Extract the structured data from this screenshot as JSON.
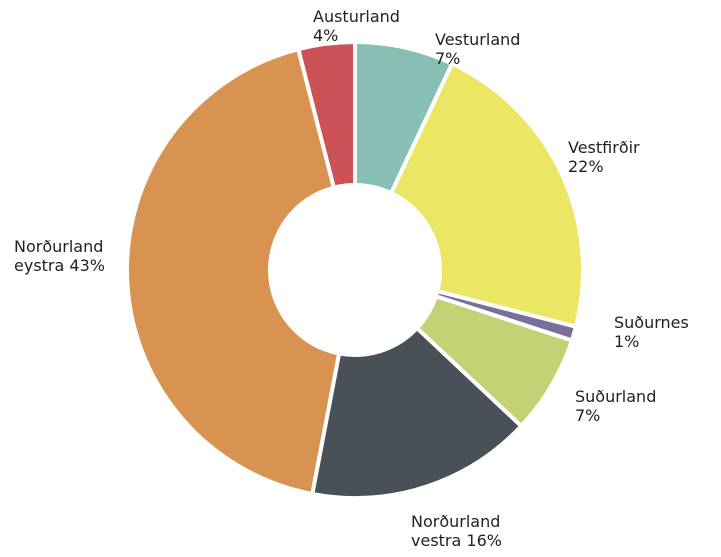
{
  "chart_data": {
    "type": "donut",
    "categories": [
      "Vesturland",
      "Vestfirðir",
      "Suðurnes",
      "Suðurland",
      "Norðurland vestra",
      "Norðurland eystra",
      "Austurland"
    ],
    "values": [
      7,
      22,
      1,
      7,
      16,
      43,
      4
    ],
    "value_labels": [
      "7%",
      "22%",
      "1%",
      "7%",
      "16%",
      "43%",
      "4%"
    ],
    "colors": [
      "#87bfb4",
      "#ece665",
      "#7a6f9b",
      "#c2d275",
      "#4a5057",
      "#d99350",
      "#cc5257"
    ]
  }
}
